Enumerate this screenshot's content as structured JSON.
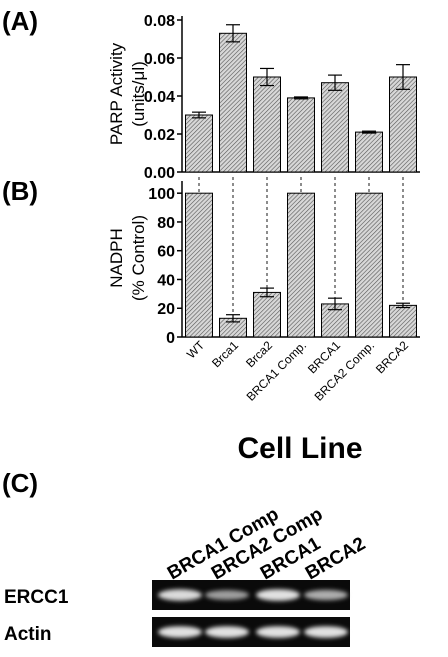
{
  "panels": {
    "a_label": "(A)",
    "b_label": "(B)",
    "c_label": "(C)"
  },
  "chart_data": [
    {
      "type": "bar",
      "panel": "(A)",
      "ylabel_line1": "PARP Activity",
      "ylabel_line2": "(units/μl)",
      "categories": [
        "WT",
        "Brca1",
        "Brca2",
        "BRCA1 Comp.",
        "BRCA1",
        "BRCA2 Comp.",
        "BRCA2"
      ],
      "values": [
        0.03,
        0.073,
        0.05,
        0.039,
        0.047,
        0.021,
        0.05
      ],
      "errors": [
        0.0015,
        0.0045,
        0.0045,
        0.0005,
        0.004,
        0.0005,
        0.0065
      ],
      "ylim": [
        0,
        0.08
      ],
      "yticks": [
        "0.00",
        "0.02",
        "0.04",
        "0.06",
        "0.08"
      ],
      "ytick_values": [
        0,
        0.02,
        0.04,
        0.06,
        0.08
      ],
      "grid": false
    },
    {
      "type": "bar",
      "panel": "(B)",
      "ylabel_line1": "NADPH",
      "ylabel_line2": "(% Control)",
      "categories": [
        "WT",
        "Brca1",
        "Brca2",
        "BRCA1 Comp.",
        "BRCA1",
        "BRCA2 Comp.",
        "BRCA2"
      ],
      "values": [
        100,
        13,
        31,
        100,
        23,
        100,
        22
      ],
      "errors": [
        0,
        2.5,
        3,
        0,
        4,
        0,
        1.5
      ],
      "ylim": [
        0,
        105
      ],
      "yticks": [
        "0",
        "20",
        "40",
        "60",
        "80",
        "100"
      ],
      "ytick_values": [
        0,
        20,
        40,
        60,
        80,
        100
      ],
      "xlabel": "Cell Line",
      "grid": false
    }
  ],
  "blot": {
    "lanes": [
      "BRCA1 Comp",
      "BRCA2 Comp",
      "BRCA1",
      "BRCA2"
    ],
    "rows": [
      {
        "label": "ERCC1",
        "intensities": [
          0.85,
          0.45,
          0.9,
          0.55
        ]
      },
      {
        "label": "Actin",
        "intensities": [
          0.9,
          0.9,
          0.9,
          0.9
        ]
      }
    ]
  }
}
